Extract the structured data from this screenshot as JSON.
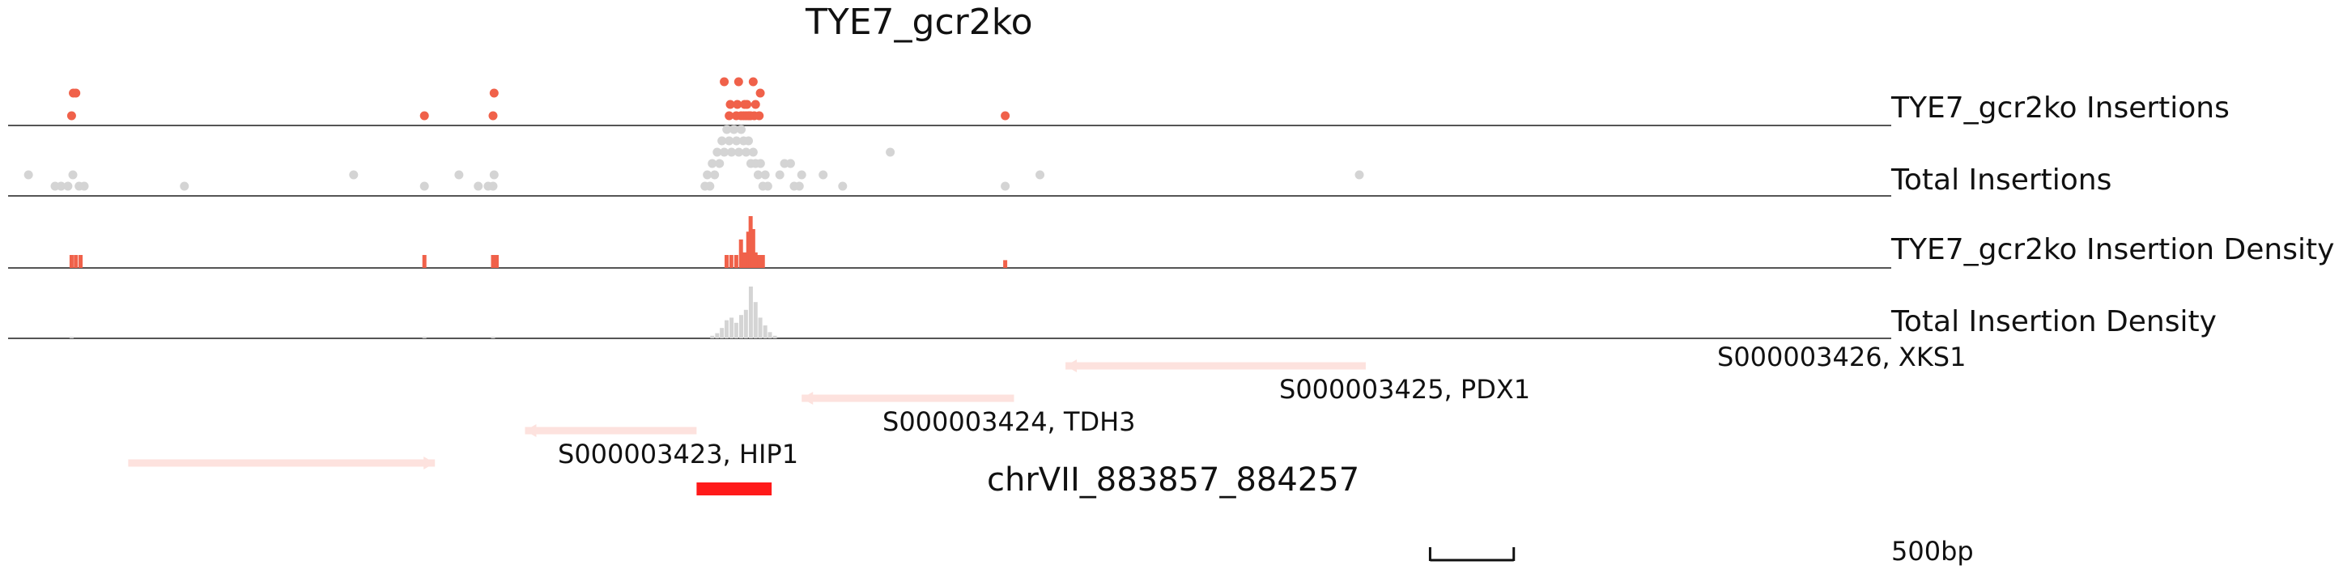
{
  "colors": {
    "accent": "#f0614a",
    "total": "#d4d4d4",
    "gene": "#fde2de",
    "region": "#ff1a1a",
    "axis": "#555555",
    "text": "#111111"
  },
  "chart_data": {
    "type": "scatter",
    "title": "TYE7_gcr2ko",
    "xunit": "genomic position (bp offset from region start)",
    "xlim": [
      0,
      8780
    ],
    "tracks": [
      {
        "name": "TYE7_gcr2ko Insertions",
        "kind": "scatter",
        "color": "#f0614a",
        "points": [
          {
            "x": 296,
            "y": 1
          },
          {
            "x": 304,
            "y": 3
          },
          {
            "x": 316,
            "y": 3
          },
          {
            "x": 1941,
            "y": 1
          },
          {
            "x": 2261,
            "y": 1
          },
          {
            "x": 2266,
            "y": 3
          },
          {
            "x": 3339,
            "y": 4
          },
          {
            "x": 3362,
            "y": 1
          },
          {
            "x": 3367,
            "y": 2
          },
          {
            "x": 3395,
            "y": 1
          },
          {
            "x": 3400,
            "y": 2
          },
          {
            "x": 3406,
            "y": 4
          },
          {
            "x": 3417,
            "y": 1
          },
          {
            "x": 3429,
            "y": 1
          },
          {
            "x": 3434,
            "y": 2
          },
          {
            "x": 3440,
            "y": 1
          },
          {
            "x": 3445,
            "y": 2
          },
          {
            "x": 3451,
            "y": 1
          },
          {
            "x": 3457,
            "y": 1
          },
          {
            "x": 3462,
            "y": 1
          },
          {
            "x": 3474,
            "y": 4
          },
          {
            "x": 3479,
            "y": 1
          },
          {
            "x": 3485,
            "y": 2
          },
          {
            "x": 3502,
            "y": 1
          },
          {
            "x": 3507,
            "y": 3
          },
          {
            "x": 4649,
            "y": 1
          }
        ]
      },
      {
        "name": "Total Insertions",
        "kind": "scatter",
        "color": "#d4d4d4",
        "points": [
          {
            "x": 95,
            "y": 2
          },
          {
            "x": 219,
            "y": 1
          },
          {
            "x": 247,
            "y": 1
          },
          {
            "x": 279,
            "y": 1
          },
          {
            "x": 302,
            "y": 2
          },
          {
            "x": 331,
            "y": 1
          },
          {
            "x": 355,
            "y": 1
          },
          {
            "x": 822,
            "y": 1
          },
          {
            "x": 1611,
            "y": 2
          },
          {
            "x": 1941,
            "y": 1
          },
          {
            "x": 2102,
            "y": 2
          },
          {
            "x": 2192,
            "y": 1
          },
          {
            "x": 2238,
            "y": 1
          },
          {
            "x": 2261,
            "y": 1
          },
          {
            "x": 2266,
            "y": 2
          },
          {
            "x": 3249,
            "y": 1
          },
          {
            "x": 3260,
            "y": 2
          },
          {
            "x": 3272,
            "y": 1
          },
          {
            "x": 3283,
            "y": 3
          },
          {
            "x": 3294,
            "y": 2
          },
          {
            "x": 3306,
            "y": 4
          },
          {
            "x": 3317,
            "y": 3
          },
          {
            "x": 3328,
            "y": 5
          },
          {
            "x": 3339,
            "y": 4
          },
          {
            "x": 3351,
            "y": 6
          },
          {
            "x": 3362,
            "y": 5
          },
          {
            "x": 3373,
            "y": 4
          },
          {
            "x": 3384,
            "y": 6
          },
          {
            "x": 3396,
            "y": 5
          },
          {
            "x": 3407,
            "y": 4
          },
          {
            "x": 3418,
            "y": 6
          },
          {
            "x": 3429,
            "y": 5
          },
          {
            "x": 3441,
            "y": 4
          },
          {
            "x": 3452,
            "y": 5
          },
          {
            "x": 3463,
            "y": 3
          },
          {
            "x": 3474,
            "y": 4
          },
          {
            "x": 3485,
            "y": 3
          },
          {
            "x": 3497,
            "y": 2
          },
          {
            "x": 3508,
            "y": 3
          },
          {
            "x": 3519,
            "y": 1
          },
          {
            "x": 3530,
            "y": 2
          },
          {
            "x": 3542,
            "y": 1
          },
          {
            "x": 3598,
            "y": 2
          },
          {
            "x": 3620,
            "y": 3
          },
          {
            "x": 3648,
            "y": 3
          },
          {
            "x": 3665,
            "y": 1
          },
          {
            "x": 3689,
            "y": 1
          },
          {
            "x": 3700,
            "y": 2
          },
          {
            "x": 3800,
            "y": 2
          },
          {
            "x": 3891,
            "y": 1
          },
          {
            "x": 4113,
            "y": 4
          },
          {
            "x": 4649,
            "y": 1
          },
          {
            "x": 4811,
            "y": 2
          },
          {
            "x": 6300,
            "y": 2
          }
        ]
      },
      {
        "name": "TYE7_gcr2ko Insertion Density",
        "kind": "bar",
        "color": "#f0614a",
        "bars": [
          {
            "x": 296,
            "v": 0.25
          },
          {
            "x": 316,
            "v": 0.25
          },
          {
            "x": 338,
            "v": 0.25
          },
          {
            "x": 1941,
            "v": 0.25
          },
          {
            "x": 2261,
            "v": 0.25
          },
          {
            "x": 2278,
            "v": 0.25
          },
          {
            "x": 3350,
            "v": 0.25
          },
          {
            "x": 3372,
            "v": 0.25
          },
          {
            "x": 3395,
            "v": 0.25
          },
          {
            "x": 3417,
            "v": 0.55
          },
          {
            "x": 3434,
            "v": 0.3
          },
          {
            "x": 3451,
            "v": 0.7
          },
          {
            "x": 3462,
            "v": 1.0
          },
          {
            "x": 3474,
            "v": 0.75
          },
          {
            "x": 3485,
            "v": 0.3
          },
          {
            "x": 3502,
            "v": 0.25
          },
          {
            "x": 3519,
            "v": 0.25
          },
          {
            "x": 4649,
            "v": 0.15
          }
        ]
      },
      {
        "name": "Total Insertion Density",
        "kind": "bar",
        "color": "#d4d4d4",
        "bars": [
          {
            "x": 296,
            "v": 0.03
          },
          {
            "x": 1941,
            "v": 0.02
          },
          {
            "x": 2261,
            "v": 0.03
          },
          {
            "x": 3283,
            "v": 0.05
          },
          {
            "x": 3306,
            "v": 0.1
          },
          {
            "x": 3328,
            "v": 0.2
          },
          {
            "x": 3350,
            "v": 0.35
          },
          {
            "x": 3373,
            "v": 0.4
          },
          {
            "x": 3395,
            "v": 0.3
          },
          {
            "x": 3418,
            "v": 0.45
          },
          {
            "x": 3440,
            "v": 0.55
          },
          {
            "x": 3463,
            "v": 1.0
          },
          {
            "x": 3485,
            "v": 0.7
          },
          {
            "x": 3507,
            "v": 0.4
          },
          {
            "x": 3530,
            "v": 0.25
          },
          {
            "x": 3552,
            "v": 0.12
          },
          {
            "x": 3575,
            "v": 0.05
          }
        ]
      }
    ],
    "genes": [
      {
        "id": "S000003426",
        "name": "XKS1",
        "label": "S000003426, XKS1",
        "start": 4930,
        "end": 6330,
        "strand": "-"
      },
      {
        "id": "S000003425",
        "name": "PDX1",
        "label": "S000003425, PDX1",
        "start": 3700,
        "end": 4690,
        "strand": "-"
      },
      {
        "id": "S000003424",
        "name": "TDH3",
        "label": "S000003424, TDH3",
        "start": 2410,
        "end": 3210,
        "strand": "-"
      },
      {
        "id": "S000003423",
        "name": "HIP1",
        "label": "S000003423, HIP1",
        "start": 560,
        "end": 1990,
        "strand": "+"
      }
    ],
    "region": {
      "label": "chrVII_883857_884257",
      "start": 3210,
      "end": 3560
    },
    "scale_bar": {
      "label": "500bp",
      "start": 6630,
      "length": 390
    }
  }
}
